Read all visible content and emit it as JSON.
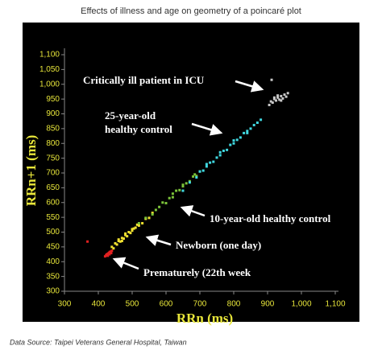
{
  "chart_data": {
    "type": "scatter",
    "title": "Effects of illness and age on geometry of a poincaré plot",
    "xlabel": "RRn (ms)",
    "ylabel": "RRn+1 (ms)",
    "source": "Data Source: Taipei Veterans General Hospital, Taiwan",
    "xlim": [
      300,
      1100
    ],
    "ylim": [
      300,
      1100
    ],
    "xticks": [
      300,
      400,
      500,
      600,
      700,
      800,
      900,
      {
        "value": 1000,
        "label": "1,000"
      },
      {
        "value": 1100,
        "label": "1,100"
      }
    ],
    "yticks": [
      300,
      350,
      400,
      450,
      500,
      550,
      600,
      650,
      700,
      750,
      800,
      850,
      900,
      950,
      {
        "value": 1000,
        "label": "1,000"
      },
      {
        "value": 1050,
        "label": "1,050"
      },
      {
        "value": 1100,
        "label": "1,100"
      }
    ],
    "annotations": [
      "Critically ill patient in ICU",
      "25-year-old",
      "healthy control",
      "10-year-old healthy control",
      "Newborn (one day)",
      "Prematurely (22th week"
    ],
    "series": [
      {
        "color": "#e02020",
        "x": [
          420,
          423,
          425,
          427,
          428,
          430,
          432,
          433,
          435,
          437,
          438,
          440,
          426,
          431,
          436,
          424,
          429,
          434,
          368
        ],
        "values": [
          418,
          421,
          424,
          426,
          420,
          428,
          430,
          425,
          432,
          434,
          429,
          437,
          422,
          427,
          431,
          423,
          425,
          433,
          468
        ]
      },
      {
        "color": "#f0e030",
        "x": [
          440,
          445,
          450,
          455,
          460,
          465,
          470,
          475,
          480,
          485,
          490,
          495,
          500,
          505,
          510,
          520,
          530,
          540,
          550,
          560,
          470,
          480,
          460,
          500,
          515
        ],
        "values": [
          450,
          445,
          462,
          458,
          470,
          468,
          480,
          478,
          490,
          486,
          500,
          497,
          505,
          512,
          515,
          522,
          530,
          545,
          548,
          565,
          470,
          495,
          475,
          510,
          525
        ]
      },
      {
        "color": "#7cc43a",
        "x": [
          520,
          540,
          560,
          580,
          600,
          610,
          620,
          630,
          640,
          650,
          660,
          670,
          680,
          690,
          700,
          590,
          620,
          650,
          570,
          685
        ],
        "values": [
          530,
          548,
          560,
          585,
          598,
          615,
          618,
          640,
          642,
          655,
          665,
          672,
          688,
          690,
          705,
          600,
          630,
          660,
          575,
          695
        ]
      },
      {
        "color": "#40d8e0",
        "x": [
          650,
          670,
          690,
          700,
          710,
          720,
          730,
          740,
          750,
          760,
          770,
          780,
          790,
          800,
          810,
          820,
          830,
          840,
          850,
          860,
          870,
          880,
          760,
          800,
          720,
          840
        ],
        "values": [
          640,
          668,
          685,
          705,
          708,
          722,
          735,
          738,
          752,
          760,
          775,
          778,
          795,
          800,
          812,
          820,
          835,
          842,
          850,
          862,
          870,
          880,
          770,
          810,
          730,
          835
        ]
      },
      {
        "color": "#c8c8c8",
        "x": [
          905,
          910,
          915,
          920,
          925,
          930,
          935,
          940,
          945,
          950,
          955,
          960,
          930,
          940,
          920,
          912
        ],
        "values": [
          930,
          942,
          938,
          950,
          945,
          955,
          948,
          960,
          952,
          965,
          958,
          970,
          962,
          945,
          955,
          1015
        ]
      }
    ]
  }
}
